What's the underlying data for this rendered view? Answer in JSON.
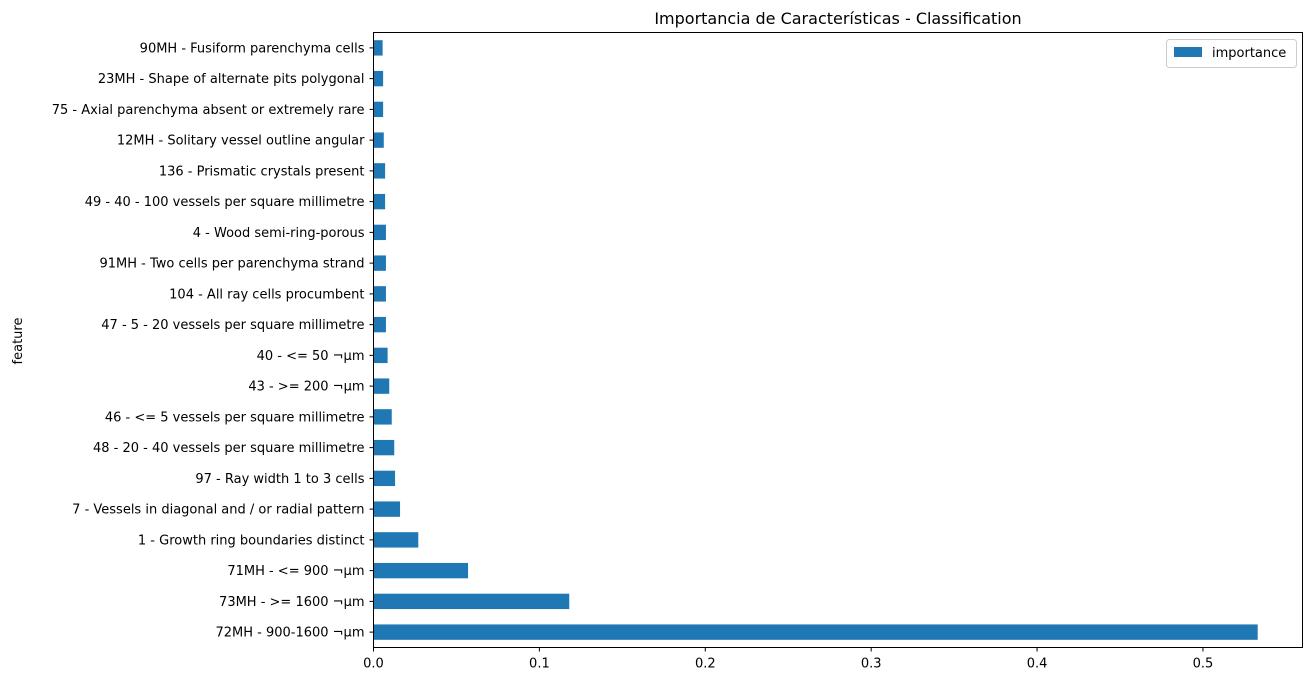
{
  "chart_data": {
    "type": "bar",
    "orientation": "horizontal",
    "title": "Importancia de Características - Classification",
    "xlabel": "",
    "ylabel": "feature",
    "xlim": [
      0,
      0.56
    ],
    "xticks": [
      0.0,
      0.1,
      0.2,
      0.3,
      0.4,
      0.5
    ],
    "xtick_labels": [
      "0.0",
      "0.1",
      "0.2",
      "0.3",
      "0.4",
      "0.5"
    ],
    "grid": false,
    "legend": {
      "placement": "top-right",
      "entries": [
        "importance"
      ]
    },
    "categories": [
      "72MH - 900-1600 ¬µm",
      "73MH - >= 1600 ¬µm",
      "71MH - <= 900 ¬µm",
      "1 - Growth ring boundaries distinct",
      "7 - Vessels in diagonal and / or radial pattern",
      "97 - Ray width 1 to 3 cells",
      "48 - 20 - 40 vessels per square millimetre",
      "46 - <= 5 vessels per square millimetre",
      "43 - >= 200 ¬µm",
      "40 - <= 50 ¬µm",
      "47 - 5 - 20 vessels per square millimetre",
      "104 - All ray cells procumbent",
      "91MH - Two cells per parenchyma strand",
      "4 - Wood semi-ring-porous",
      "49 - 40 - 100 vessels per square millimetre",
      "136 - Prismatic crystals present",
      "12MH - Solitary vessel outline angular",
      "75 - Axial parenchyma absent or extremely rare",
      "23MH - Shape of alternate pits polygonal",
      "90MH - Fusiform parenchyma cells"
    ],
    "series": [
      {
        "name": "importance",
        "color": "#1f77b4",
        "values": [
          0.533,
          0.118,
          0.057,
          0.027,
          0.016,
          0.013,
          0.0125,
          0.011,
          0.0095,
          0.0085,
          0.0075,
          0.0075,
          0.0075,
          0.0075,
          0.007,
          0.007,
          0.0062,
          0.0058,
          0.0058,
          0.0055
        ]
      }
    ]
  }
}
